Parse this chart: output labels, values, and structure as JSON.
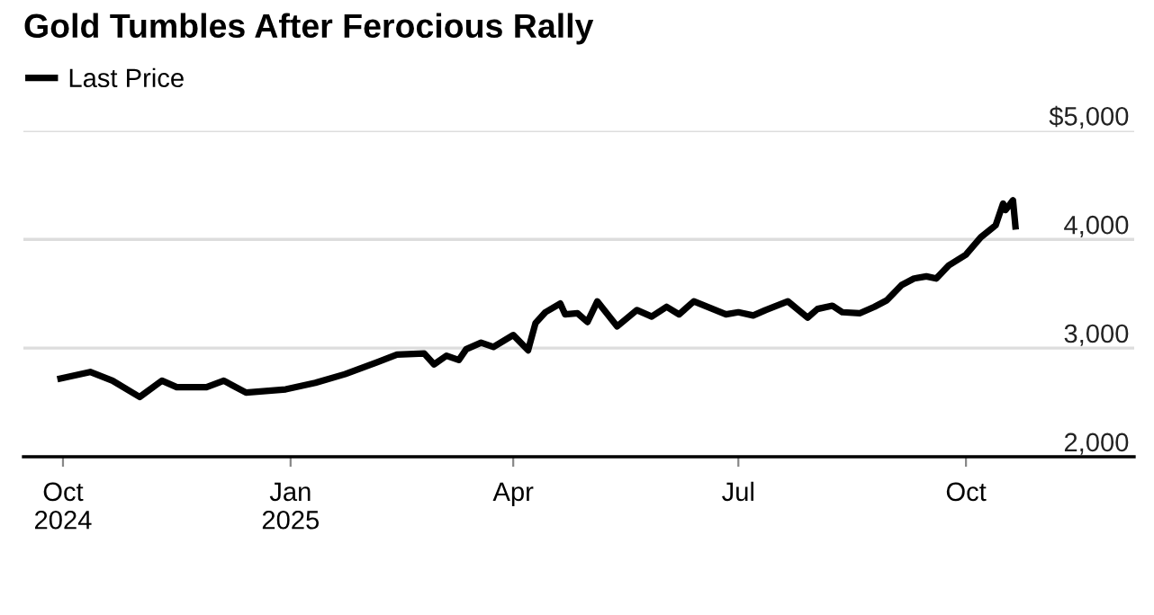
{
  "chart_data": {
    "type": "line",
    "title": "Gold Tumbles After Ferocious Rally",
    "x": [
      "2024-09-30",
      "2024-10-12",
      "2024-10-21",
      "2024-11-01",
      "2024-11-10",
      "2024-11-16",
      "2024-11-28",
      "2024-12-05",
      "2024-12-14",
      "2024-12-30",
      "2025-01-11",
      "2025-01-23",
      "2025-02-05",
      "2025-02-13",
      "2025-02-24",
      "2025-02-28",
      "2025-03-05",
      "2025-03-10",
      "2025-03-13",
      "2025-03-19",
      "2025-03-24",
      "2025-04-01",
      "2025-04-07",
      "2025-04-10",
      "2025-04-14",
      "2025-04-20",
      "2025-04-22",
      "2025-04-27",
      "2025-05-01",
      "2025-05-05",
      "2025-05-13",
      "2025-05-21",
      "2025-05-27",
      "2025-06-02",
      "2025-06-07",
      "2025-06-13",
      "2025-06-26",
      "2025-07-01",
      "2025-07-07",
      "2025-07-12",
      "2025-07-21",
      "2025-07-29",
      "2025-08-02",
      "2025-08-08",
      "2025-08-12",
      "2025-08-19",
      "2025-08-25",
      "2025-08-30",
      "2025-09-05",
      "2025-09-10",
      "2025-09-15",
      "2025-09-19",
      "2025-09-24",
      "2025-10-01",
      "2025-10-07",
      "2025-10-13",
      "2025-10-16",
      "2025-10-17",
      "2025-10-20",
      "2025-10-21"
    ],
    "series": [
      {
        "name": "Last Price",
        "color": "#000000",
        "values": [
          2720,
          2780,
          2700,
          2550,
          2700,
          2640,
          2640,
          2700,
          2590,
          2620,
          2680,
          2760,
          2870,
          2940,
          2950,
          2850,
          2930,
          2890,
          2990,
          3050,
          3010,
          3120,
          2980,
          3230,
          3330,
          3410,
          3310,
          3320,
          3240,
          3430,
          3200,
          3350,
          3290,
          3380,
          3310,
          3430,
          3310,
          3330,
          3300,
          3350,
          3430,
          3280,
          3360,
          3390,
          3330,
          3320,
          3380,
          3440,
          3580,
          3640,
          3660,
          3640,
          3760,
          3860,
          4020,
          4130,
          4330,
          4270,
          4360,
          4120
        ]
      }
    ],
    "xlim": [
      "2024-09-15",
      "2025-12-08"
    ],
    "xticks": [
      {
        "value": "2024-10-01",
        "label": "Oct\n2024"
      },
      {
        "value": "2025-01-01",
        "label": "Jan\n2025"
      },
      {
        "value": "2025-04-01",
        "label": "Apr"
      },
      {
        "value": "2025-07-01",
        "label": "Jul"
      },
      {
        "value": "2025-10-01",
        "label": "Oct"
      }
    ],
    "ylim": [
      2000,
      5000
    ],
    "yticks": [
      {
        "value": 2000,
        "label": "2,000"
      },
      {
        "value": 3000,
        "label": "3,000"
      },
      {
        "value": 4000,
        "label": "4,000"
      },
      {
        "value": 5000,
        "label": "$5,000"
      }
    ],
    "grid": "y",
    "legend": "top left",
    "marker": "none",
    "line_style": "solid"
  }
}
